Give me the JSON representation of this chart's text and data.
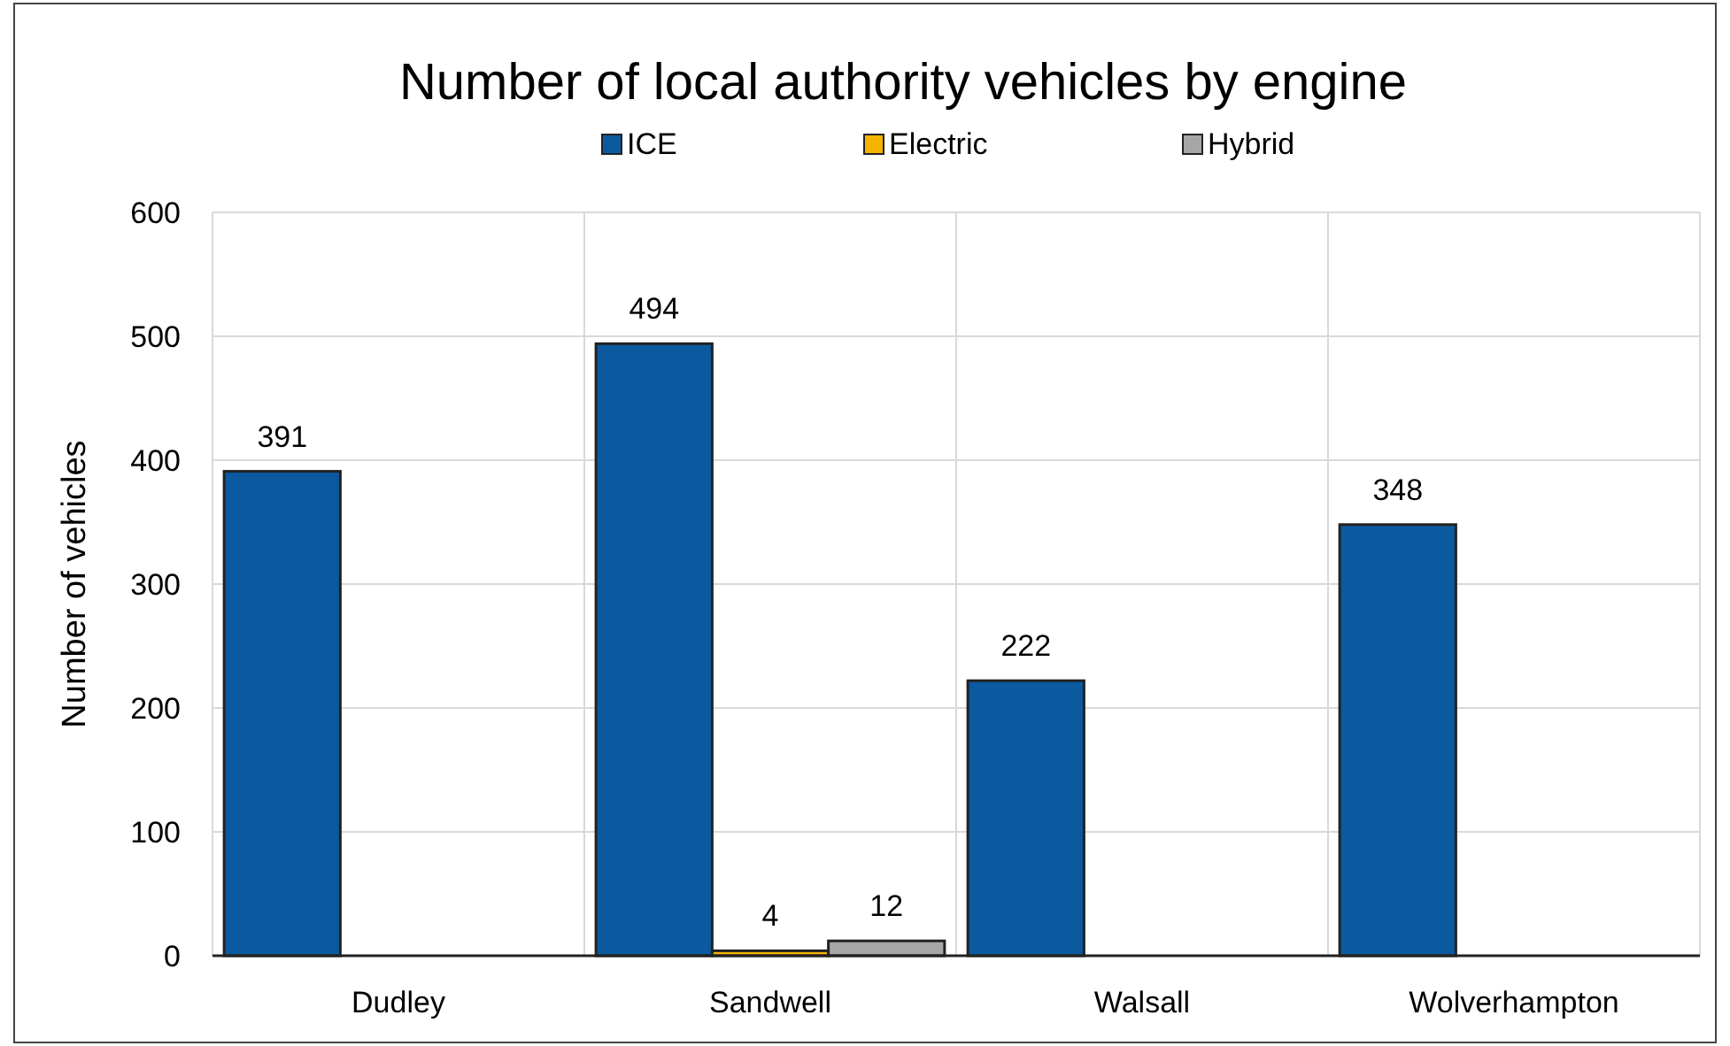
{
  "chart_data": {
    "type": "bar",
    "title": "Number of local authority vehicles by engine",
    "ylabel": "Number of vehicles",
    "categories": [
      "Dudley",
      "Sandwell",
      "Walsall",
      "Wolverhampton"
    ],
    "series": [
      {
        "name": "ICE",
        "color": "#0b5aa0",
        "values": [
          391,
          494,
          222,
          348
        ]
      },
      {
        "name": "Electric",
        "color": "#f5b400",
        "values": [
          null,
          4,
          null,
          null
        ]
      },
      {
        "name": "Hybrid",
        "color": "#a6a6a6",
        "values": [
          null,
          12,
          null,
          null
        ]
      }
    ],
    "ylim": [
      0,
      600
    ],
    "yticks": [
      0,
      100,
      200,
      300,
      400,
      500,
      600
    ],
    "grid": true,
    "legend": "top",
    "data_labels": true
  }
}
